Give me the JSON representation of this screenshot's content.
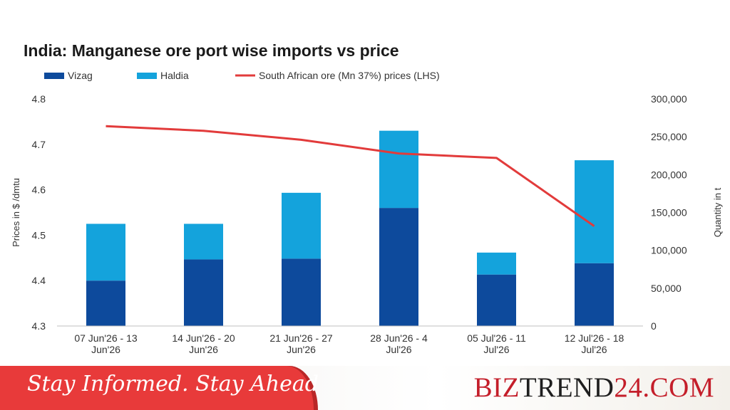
{
  "chart_data": {
    "type": "bar",
    "stacked": true,
    "title": "India: Manganese ore port wise imports vs price",
    "categories": [
      [
        "07 Jun'26 - 13",
        "Jun'26"
      ],
      [
        "14 Jun'26 - 20",
        "Jun'26"
      ],
      [
        "21 Jun'26 - 27",
        "Jun'26"
      ],
      [
        "28 Jun'26 - 4",
        "Jul'26"
      ],
      [
        "05 Jul'26 - 11",
        "Jul'26"
      ],
      [
        "12 Jul'26 - 18",
        "Jul'26"
      ]
    ],
    "series": [
      {
        "name": "Vizag",
        "axis": "right",
        "color": "#0d4a9c",
        "values": [
          60000,
          88000,
          89000,
          156000,
          68000,
          83000
        ]
      },
      {
        "name": "Haldia",
        "axis": "right",
        "color": "#14a3dc",
        "values": [
          75000,
          47000,
          87000,
          102000,
          29000,
          136000
        ]
      }
    ],
    "line_series": {
      "name": "South African ore (Mn 37%) prices (LHS)",
      "axis": "left",
      "color": "#e23b3b",
      "values": [
        4.74,
        4.73,
        4.71,
        4.68,
        4.67,
        4.52
      ]
    },
    "ylabel": "Prices in $ /dmtu",
    "ylim": [
      4.3,
      4.8
    ],
    "yticks": [
      "4.3",
      "4.4",
      "4.5",
      "4.6",
      "4.7",
      "4.8"
    ],
    "y2label": "Quantity in t",
    "y2lim": [
      0,
      300000
    ],
    "y2ticks": [
      "0",
      "50,000",
      "100,000",
      "150,000",
      "200,000",
      "250,000",
      "300,000"
    ],
    "legend_position": "top-left",
    "grid": false
  },
  "footer": {
    "tagline": "Stay Informed. Stay Ahead",
    "brand_part1": "BIZ",
    "brand_part2": "TREND",
    "brand_part3": "24.COM",
    "accent_color": "#e83a3a"
  }
}
